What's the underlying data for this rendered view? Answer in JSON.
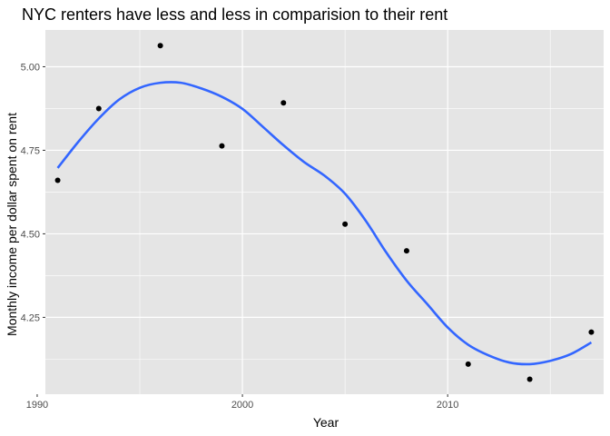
{
  "chart_data": {
    "type": "scatter",
    "title": "NYC renters have less and less in comparision to their rent",
    "xlabel": "Year",
    "ylabel": "Monthly income per dollar spent on rent",
    "xlim": [
      1990.4,
      2017.6
    ],
    "ylim": [
      4.02,
      5.11
    ],
    "x_ticks": [
      1990,
      2000,
      2010
    ],
    "x_tick_labels": [
      "1990",
      "2000",
      "2010"
    ],
    "y_ticks": [
      4.25,
      4.5,
      4.75,
      5.0
    ],
    "y_tick_labels": [
      "4.25",
      "4.50",
      "4.75",
      "5.00"
    ],
    "grid": true,
    "points": {
      "x": [
        1991,
        1993,
        1996,
        1999,
        2002,
        2005,
        2008,
        2011,
        2014,
        2017
      ],
      "y": [
        4.66,
        4.875,
        5.063,
        4.763,
        4.892,
        4.529,
        4.449,
        4.11,
        4.065,
        4.206
      ]
    },
    "smooth_line": {
      "x": [
        1991,
        1992,
        1993,
        1994,
        1995,
        1996,
        1997,
        1998,
        1999,
        2000,
        2001,
        2002,
        2003,
        2004,
        2005,
        2006,
        2007,
        2008,
        2009,
        2010,
        2011,
        2012,
        2013,
        2014,
        2015,
        2016,
        2017
      ],
      "y": [
        4.697,
        4.775,
        4.845,
        4.902,
        4.937,
        4.952,
        4.952,
        4.935,
        4.91,
        4.874,
        4.82,
        4.765,
        4.715,
        4.674,
        4.62,
        4.54,
        4.445,
        4.36,
        4.29,
        4.22,
        4.168,
        4.136,
        4.115,
        4.11,
        4.12,
        4.14,
        4.175
      ]
    },
    "colors": {
      "panel": "#e5e5e5",
      "grid": "#ffffff",
      "point": "#000000",
      "line": "#3366ff"
    }
  }
}
